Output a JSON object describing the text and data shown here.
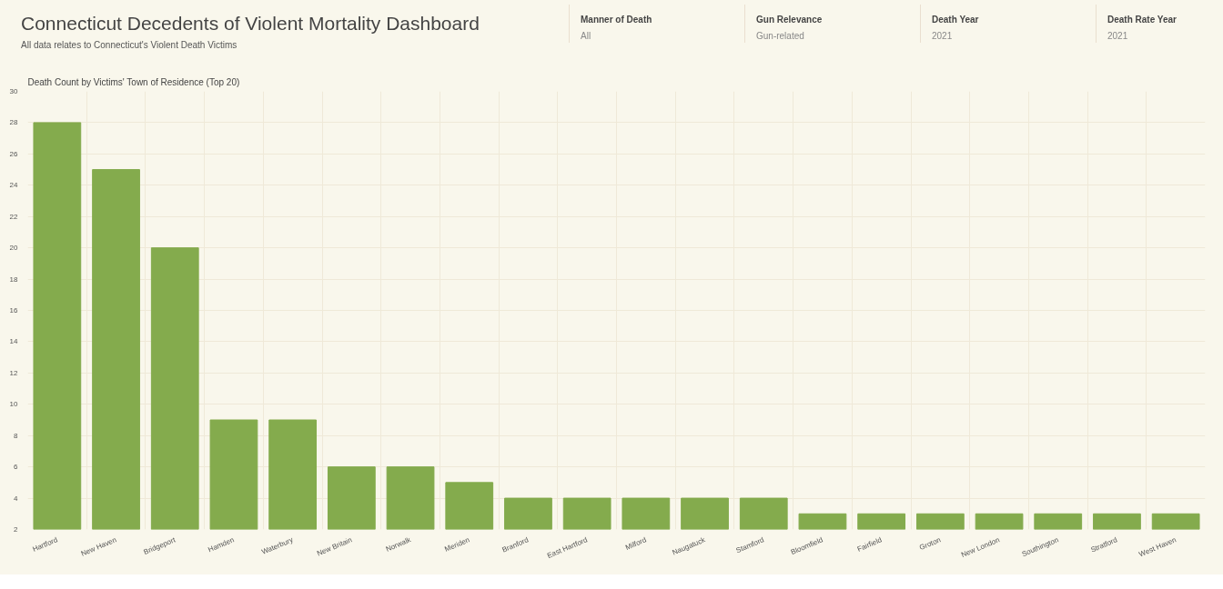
{
  "chart_data": {
    "type": "bar",
    "title": "Connecticut Decedents of Violent Mortality Dashboard",
    "subtitle": "All data relates to Connecticut's Violent Death Victims",
    "annotations": [
      "Death Count by Victims' Town of Residence (Top 20)",
      "Manner of Death",
      "All",
      "Gun Relevance",
      "Gun-related",
      "Death Year",
      "2021",
      "Death Rate Year",
      "2021"
    ],
    "categories": [
      "Hartford",
      "New Haven",
      "Bridgeport",
      "Hamden",
      "Waterbury",
      "New Britain",
      "Norwalk",
      "Meriden",
      "Branford",
      "East Hartford",
      "Milford",
      "Naugatuck",
      "Stamford",
      "Bloomfield",
      "Fairfield",
      "Groton",
      "New London",
      "Southington",
      "Stratford",
      "West Haven"
    ],
    "values": [
      28,
      25,
      20,
      9,
      9,
      6,
      6,
      5,
      4,
      4,
      4,
      4,
      4,
      3,
      3,
      3,
      3,
      3,
      3,
      3
    ],
    "color": "#84ab4d",
    "ylim": [
      2,
      30
    ],
    "yticks": [
      2,
      4,
      6,
      8,
      10,
      12,
      14,
      16,
      18,
      20,
      22,
      24,
      26,
      28,
      30
    ],
    "grid": true
  }
}
